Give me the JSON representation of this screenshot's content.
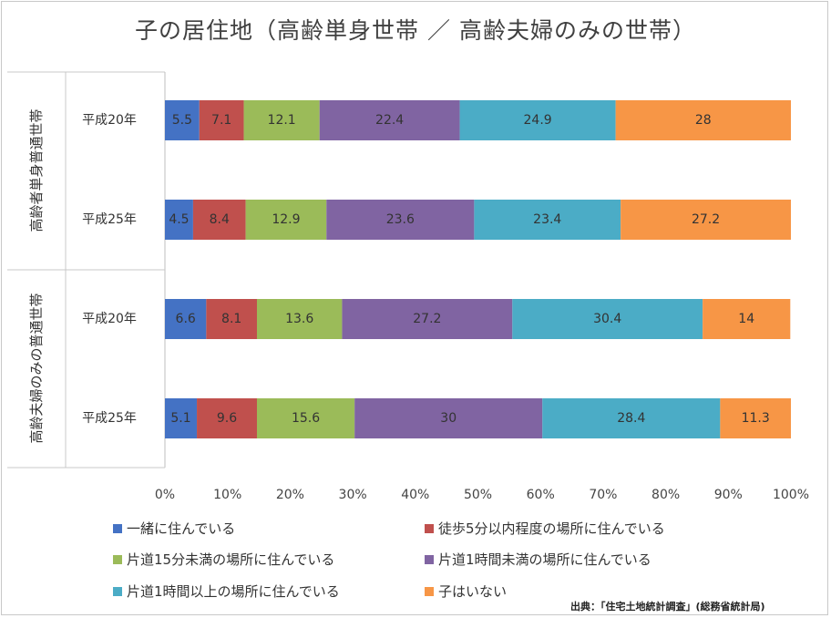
{
  "chart_data": {
    "type": "bar",
    "orientation": "horizontal",
    "stacked": "percent",
    "title": "子の居住地（高齢単身世帯 ／ 高齢夫婦のみの世帯）",
    "groups": [
      {
        "label": "高齢者単身普通世帯",
        "categories": [
          "平成20年",
          "平成25年"
        ]
      },
      {
        "label": "高齢夫婦のみの普通世帯",
        "categories": [
          "平成20年",
          "平成25年"
        ]
      }
    ],
    "categories": [
      "平成20年",
      "平成25年",
      "平成20年",
      "平成25年"
    ],
    "series": [
      {
        "name": "一緒に住んでいる",
        "color": "#4472c4",
        "values": [
          5.5,
          4.5,
          6.6,
          5.1
        ]
      },
      {
        "name": "徒歩5分以内程度の場所に住んでいる",
        "color": "#c0504d",
        "values": [
          7.1,
          8.4,
          8.1,
          9.6
        ]
      },
      {
        "name": "片道15分未満の場所に住んでいる",
        "color": "#9bbb59",
        "values": [
          12.1,
          12.9,
          13.6,
          15.6
        ]
      },
      {
        "name": "片道1時間未満の場所に住んでいる",
        "color": "#8064a2",
        "values": [
          22.4,
          23.6,
          27.2,
          30
        ]
      },
      {
        "name": "片道1時間以上の場所に住んでいる",
        "color": "#4bacc6",
        "values": [
          24.9,
          23.4,
          30.4,
          28.4
        ]
      },
      {
        "name": "子はいない",
        "color": "#f79646",
        "values": [
          28,
          27.2,
          14,
          11.3
        ]
      }
    ],
    "xlim": [
      0,
      100
    ],
    "xticks": [
      "0%",
      "10%",
      "20%",
      "30%",
      "40%",
      "50%",
      "60%",
      "70%",
      "80%",
      "90%",
      "100%"
    ],
    "grid": false,
    "legend_position": "bottom"
  },
  "source_note": "出典：「住宅土地統計調査」(総務省統計局)"
}
